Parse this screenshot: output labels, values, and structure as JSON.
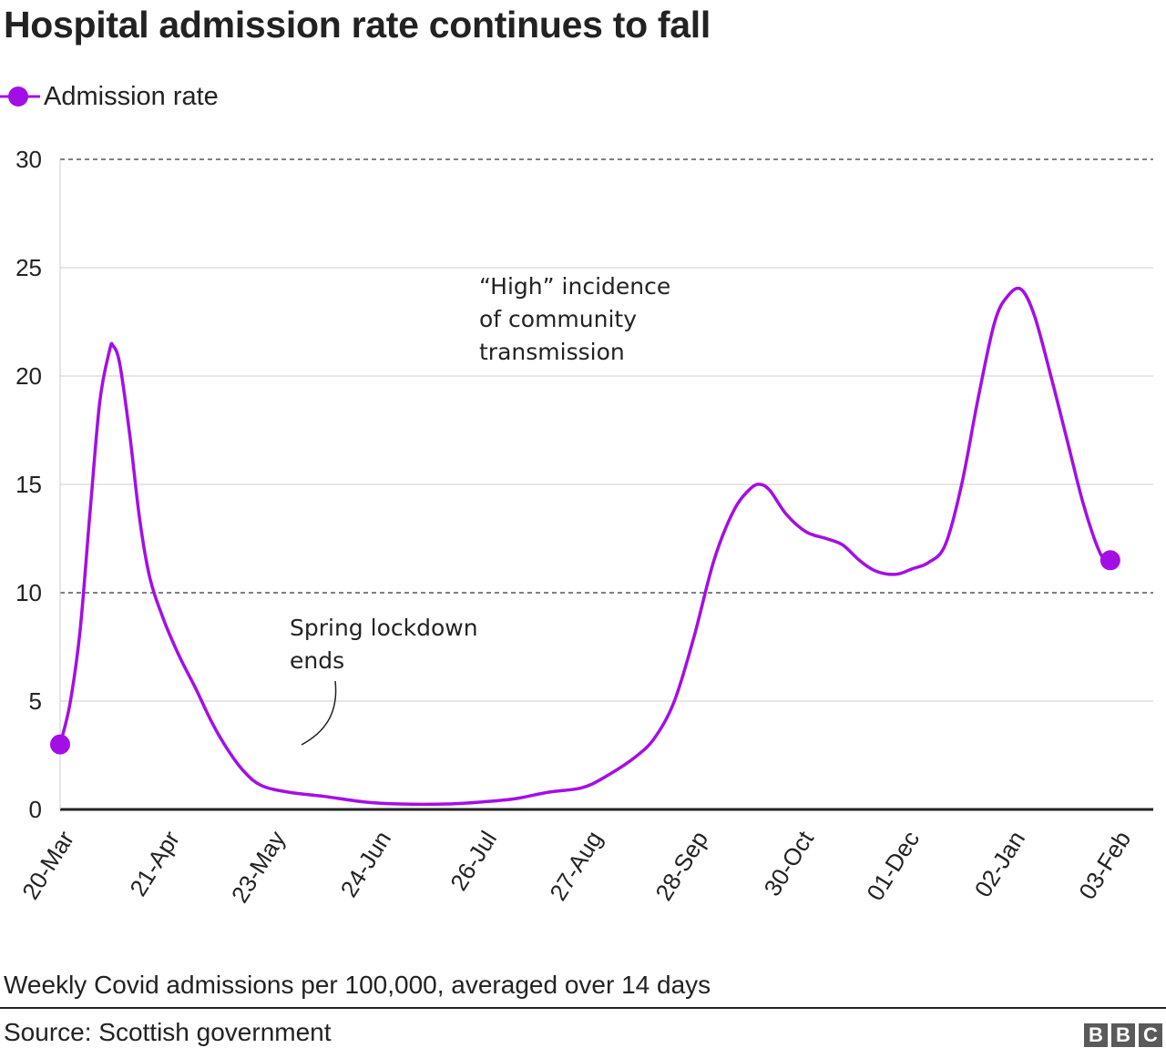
{
  "title": "Hospital admission rate continues to fall",
  "legend": {
    "label": "Admission rate",
    "color": "#a40ee6"
  },
  "subtitle": "Weekly Covid admissions per 100,000, averaged over 14 days",
  "source": "Source: Scottish government",
  "logo": {
    "letters": [
      "B",
      "B",
      "C"
    ]
  },
  "chart_data": {
    "type": "line",
    "title": "Hospital admission rate continues to fall",
    "xlabel": "",
    "ylabel": "",
    "x_start": "20-Mar",
    "x_end": "14-Feb",
    "ylim": [
      0,
      30
    ],
    "yticks": [
      0,
      5,
      10,
      15,
      20,
      25,
      30
    ],
    "xticks": [
      "20-Mar",
      "21-Apr",
      "23-May",
      "24-Jun",
      "26-Jul",
      "27-Aug",
      "28-Sep",
      "30-Oct",
      "01-Dec",
      "02-Jan",
      "03-Feb"
    ],
    "grid": true,
    "legend_position": "top-left",
    "series": [
      {
        "name": "Admission rate",
        "color": "#a40ee6",
        "points": [
          [
            "20-Mar",
            3.0
          ],
          [
            "23-Mar",
            4.9
          ],
          [
            "26-Mar",
            8.2
          ],
          [
            "29-Mar",
            13.6
          ],
          [
            "01-Apr",
            18.8
          ],
          [
            "04-Apr",
            21.2
          ],
          [
            "05-Apr",
            21.4
          ],
          [
            "07-Apr",
            20.6
          ],
          [
            "10-Apr",
            17.4
          ],
          [
            "13-Apr",
            13.5
          ],
          [
            "16-Apr",
            10.8
          ],
          [
            "20-Apr",
            8.9
          ],
          [
            "25-Apr",
            7.1
          ],
          [
            "30-Apr",
            5.6
          ],
          [
            "05-May",
            4.0
          ],
          [
            "10-May",
            2.7
          ],
          [
            "15-May",
            1.7
          ],
          [
            "20-May",
            1.1
          ],
          [
            "28-May",
            0.8
          ],
          [
            "08-Jun",
            0.6
          ],
          [
            "20-Jun",
            0.35
          ],
          [
            "01-Jul",
            0.25
          ],
          [
            "15-Jul",
            0.25
          ],
          [
            "26-Jul",
            0.35
          ],
          [
            "05-Aug",
            0.5
          ],
          [
            "15-Aug",
            0.8
          ],
          [
            "25-Aug",
            1.0
          ],
          [
            "01-Sep",
            1.5
          ],
          [
            "10-Sep",
            2.4
          ],
          [
            "16-Sep",
            3.3
          ],
          [
            "22-Sep",
            5.0
          ],
          [
            "28-Sep",
            8.0
          ],
          [
            "04-Oct",
            11.5
          ],
          [
            "10-Oct",
            13.8
          ],
          [
            "15-Oct",
            14.8
          ],
          [
            "18-Oct",
            15.0
          ],
          [
            "21-Oct",
            14.7
          ],
          [
            "26-Oct",
            13.6
          ],
          [
            "01-Nov",
            12.8
          ],
          [
            "07-Nov",
            12.5
          ],
          [
            "12-Nov",
            12.2
          ],
          [
            "17-Nov",
            11.5
          ],
          [
            "22-Nov",
            11.0
          ],
          [
            "28-Nov",
            10.85
          ],
          [
            "03-Dec",
            11.1
          ],
          [
            "08-Dec",
            11.4
          ],
          [
            "13-Dec",
            12.2
          ],
          [
            "18-Dec",
            15.0
          ],
          [
            "23-Dec",
            19.0
          ],
          [
            "28-Dec",
            22.5
          ],
          [
            "01-Jan",
            23.7
          ],
          [
            "05-Jan",
            24.0
          ],
          [
            "09-Jan",
            22.8
          ],
          [
            "14-Jan",
            20.0
          ],
          [
            "19-Jan",
            17.0
          ],
          [
            "24-Jan",
            14.0
          ],
          [
            "29-Jan",
            11.8
          ],
          [
            "01-Feb",
            11.5
          ]
        ]
      }
    ],
    "reference_lines": [
      {
        "y": 30,
        "style": "dashed"
      },
      {
        "y": 10,
        "style": "dashed"
      }
    ],
    "annotations": [
      {
        "lines": [
          "“High” incidence",
          "of community",
          "transmission"
        ]
      },
      {
        "lines": [
          "Spring lockdown",
          "ends"
        ]
      }
    ]
  }
}
